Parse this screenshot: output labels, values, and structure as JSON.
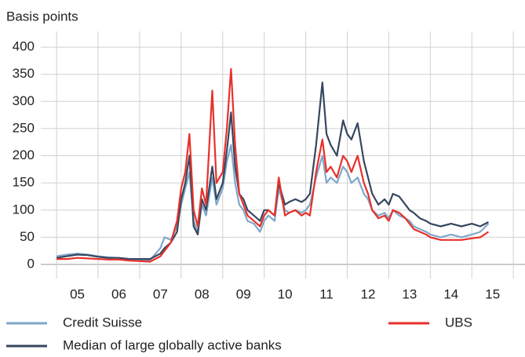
{
  "chart_data": {
    "type": "line",
    "y_label": "Basis points",
    "x": [
      5.0,
      5.25,
      5.5,
      5.75,
      6.0,
      6.25,
      6.5,
      6.75,
      7.0,
      7.25,
      7.5,
      7.6,
      7.75,
      7.9,
      8.0,
      8.1,
      8.2,
      8.3,
      8.4,
      8.5,
      8.6,
      8.75,
      8.85,
      9.0,
      9.1,
      9.2,
      9.3,
      9.4,
      9.5,
      9.6,
      9.75,
      9.9,
      10.0,
      10.1,
      10.25,
      10.35,
      10.5,
      10.6,
      10.75,
      10.9,
      11.0,
      11.1,
      11.25,
      11.4,
      11.5,
      11.6,
      11.75,
      11.9,
      12.0,
      12.1,
      12.25,
      12.4,
      12.5,
      12.6,
      12.75,
      12.9,
      13.0,
      13.1,
      13.25,
      13.4,
      13.5,
      13.6,
      13.75,
      13.9,
      14.0,
      14.25,
      14.5,
      14.75,
      15.0,
      15.2,
      15.4
    ],
    "series": [
      {
        "name": "Credit Suisse",
        "color": "#7fa7c9",
        "values": [
          15,
          18,
          20,
          18,
          15,
          13,
          12,
          10,
          9,
          8,
          30,
          50,
          45,
          70,
          110,
          140,
          170,
          80,
          60,
          110,
          90,
          160,
          110,
          140,
          190,
          220,
          150,
          110,
          100,
          80,
          75,
          60,
          80,
          90,
          80,
          140,
          100,
          95,
          100,
          95,
          100,
          110,
          160,
          200,
          150,
          160,
          150,
          180,
          170,
          150,
          160,
          130,
          120,
          100,
          90,
          95,
          85,
          100,
          90,
          85,
          80,
          70,
          65,
          60,
          55,
          50,
          55,
          50,
          55,
          60,
          75
        ]
      },
      {
        "name": "Median of large globally active banks",
        "color": "#36475f",
        "values": [
          12,
          15,
          18,
          17,
          14,
          12,
          12,
          10,
          10,
          10,
          20,
          30,
          40,
          60,
          120,
          150,
          200,
          70,
          55,
          120,
          100,
          180,
          120,
          150,
          210,
          280,
          180,
          130,
          120,
          100,
          90,
          80,
          100,
          100,
          90,
          150,
          110,
          115,
          120,
          115,
          120,
          130,
          220,
          335,
          240,
          220,
          200,
          265,
          240,
          230,
          260,
          190,
          160,
          130,
          110,
          120,
          110,
          130,
          125,
          110,
          100,
          95,
          85,
          80,
          75,
          70,
          75,
          70,
          75,
          70,
          78
        ]
      },
      {
        "name": "UBS",
        "color": "#e8302a",
        "values": [
          10,
          10,
          12,
          11,
          10,
          9,
          9,
          7,
          6,
          5,
          15,
          25,
          40,
          80,
          140,
          170,
          240,
          100,
          70,
          140,
          110,
          320,
          150,
          170,
          250,
          360,
          220,
          130,
          110,
          90,
          80,
          70,
          90,
          100,
          90,
          160,
          90,
          95,
          100,
          90,
          95,
          90,
          170,
          230,
          170,
          180,
          160,
          200,
          190,
          170,
          200,
          150,
          130,
          100,
          85,
          90,
          80,
          100,
          95,
          85,
          75,
          65,
          60,
          55,
          50,
          45,
          45,
          45,
          48,
          50,
          60
        ]
      }
    ],
    "xlim": [
      4.62,
      16.28
    ],
    "xticks": [
      {
        "value": 5.5,
        "label": "05"
      },
      {
        "value": 6.5,
        "label": "06"
      },
      {
        "value": 7.5,
        "label": "07"
      },
      {
        "value": 8.5,
        "label": "08"
      },
      {
        "value": 9.5,
        "label": "09"
      },
      {
        "value": 10.5,
        "label": "10"
      },
      {
        "value": 11.5,
        "label": "11"
      },
      {
        "value": 12.5,
        "label": "12"
      },
      {
        "value": 13.5,
        "label": "13"
      },
      {
        "value": 14.5,
        "label": "14"
      },
      {
        "value": 15.5,
        "label": "15"
      }
    ],
    "ylim": [
      -26,
      429
    ],
    "yticks": [
      0,
      50,
      100,
      150,
      200,
      250,
      300,
      350,
      400
    ],
    "grid": true
  }
}
